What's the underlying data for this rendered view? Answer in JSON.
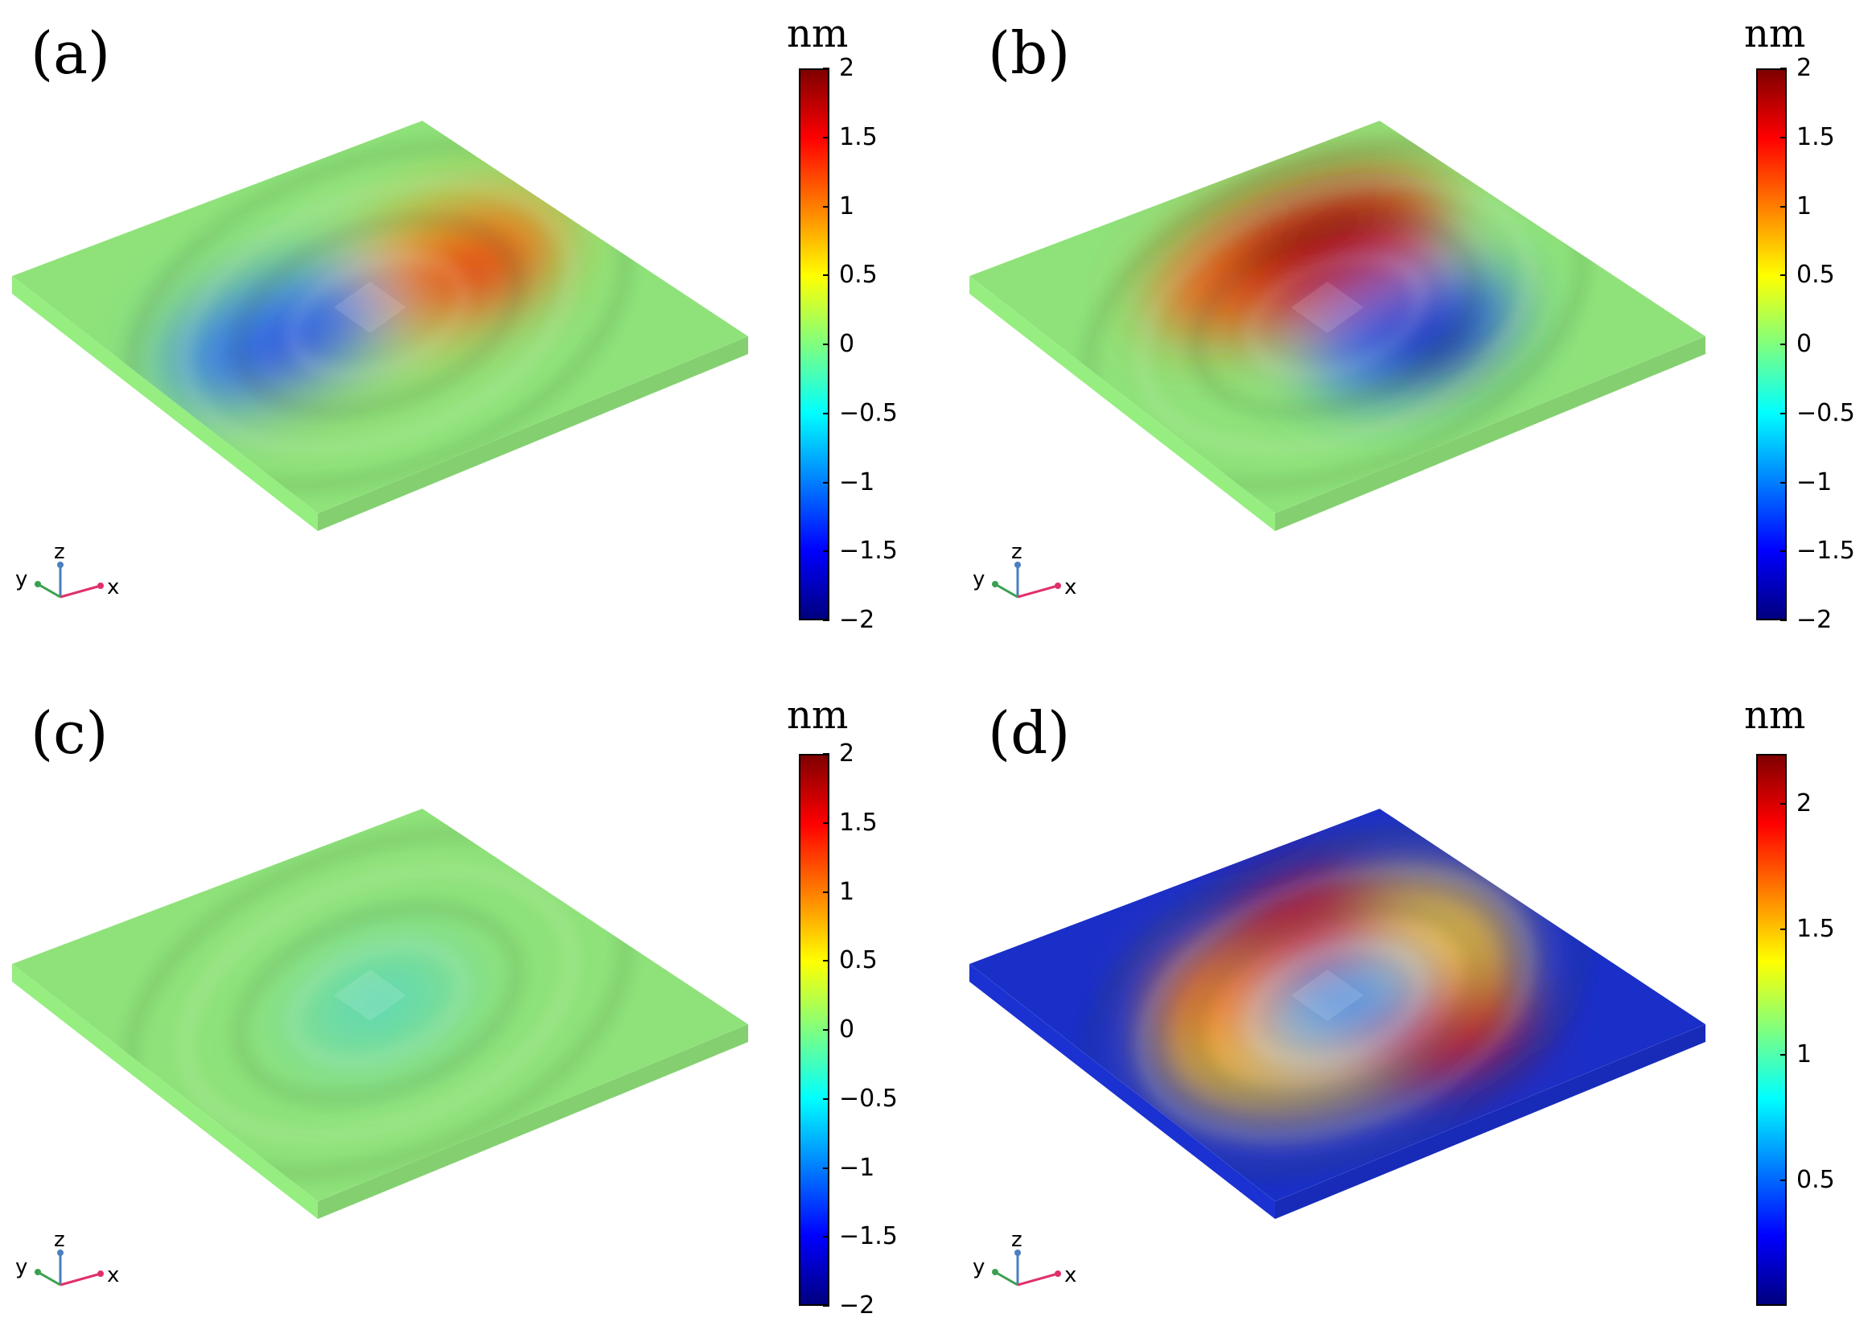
{
  "colormap": {
    "jet_stops": [
      "#00007f",
      "#0000ff",
      "#007fff",
      "#00ffff",
      "#7fff7f",
      "#ffff00",
      "#ff7f00",
      "#ff0000",
      "#7f0000"
    ]
  },
  "panels": [
    {
      "label": "(a)",
      "unit": "nm",
      "colorbar": {
        "min": -2,
        "max": 2,
        "ticks": [
          "2",
          "1.5",
          "1",
          "0.5",
          "0",
          "−0.5",
          "−1",
          "−1.5",
          "−2"
        ],
        "tick_values": [
          2,
          1.5,
          1,
          0.5,
          0,
          -0.5,
          -1,
          -1.5,
          -2
        ]
      },
      "surface": {
        "base": "#8fe27a",
        "hot": "#e23c12",
        "cold": "#2c4de0",
        "mode": "dipole-a"
      },
      "axes": {
        "x": "x",
        "y": "y",
        "z": "z"
      }
    },
    {
      "label": "(b)",
      "unit": "nm",
      "colorbar": {
        "min": -2,
        "max": 2,
        "ticks": [
          "2",
          "1.5",
          "1",
          "0.5",
          "0",
          "−0.5",
          "−1",
          "−1.5",
          "−2"
        ],
        "tick_values": [
          2,
          1.5,
          1,
          0.5,
          0,
          -0.5,
          -1,
          -1.5,
          -2
        ]
      },
      "surface": {
        "base": "#8fe27a",
        "hot": "#a00a08",
        "cold": "#1620b8",
        "mode": "dipole-b"
      },
      "axes": {
        "x": "x",
        "y": "y",
        "z": "z"
      }
    },
    {
      "label": "(c)",
      "unit": "nm",
      "colorbar": {
        "min": -2,
        "max": 2,
        "ticks": [
          "2",
          "1.5",
          "1",
          "0.5",
          "0",
          "−0.5",
          "−1",
          "−1.5",
          "−2"
        ],
        "tick_values": [
          2,
          1.5,
          1,
          0.5,
          0,
          -0.5,
          -1,
          -1.5,
          -2
        ]
      },
      "surface": {
        "base": "#8fe27a",
        "hot": "#c8e050",
        "cold": "#49d5c8",
        "mode": "rings"
      },
      "axes": {
        "x": "x",
        "y": "y",
        "z": "z"
      }
    },
    {
      "label": "(d)",
      "unit": "nm",
      "colorbar": {
        "min": 0,
        "max": 2.2,
        "ticks": [
          "2",
          "1.5",
          "1",
          "0.5"
        ],
        "tick_values": [
          2,
          1.5,
          1,
          0.5
        ]
      },
      "surface": {
        "base": "#1a2fc8",
        "hot": "#c91808",
        "cold": "#37b8f0",
        "mode": "ring-d"
      },
      "axes": {
        "x": "x",
        "y": "y",
        "z": "z"
      }
    }
  ]
}
